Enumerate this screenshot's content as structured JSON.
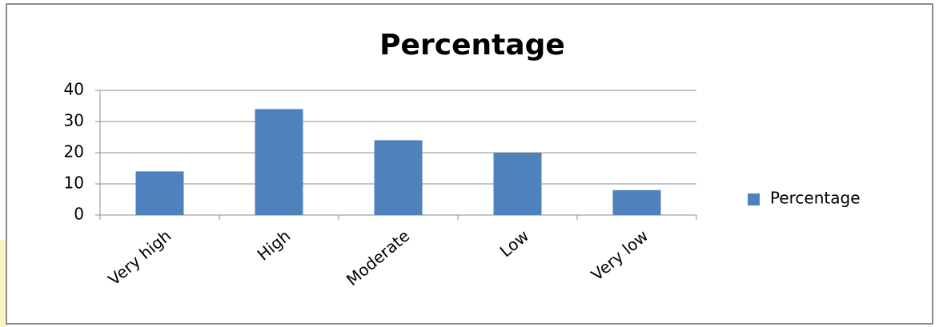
{
  "chart_data": {
    "type": "bar",
    "title": "Percentage",
    "categories": [
      "Very high",
      "High",
      "Moderate",
      "Low",
      "Very low"
    ],
    "series": [
      {
        "name": "Percentage",
        "color": "#4f81bd",
        "values": [
          14,
          34,
          24,
          20,
          8
        ]
      }
    ],
    "ylim": [
      0,
      40
    ],
    "yticks": [
      0,
      10,
      20,
      30,
      40
    ],
    "grid": true,
    "legend": "right"
  }
}
